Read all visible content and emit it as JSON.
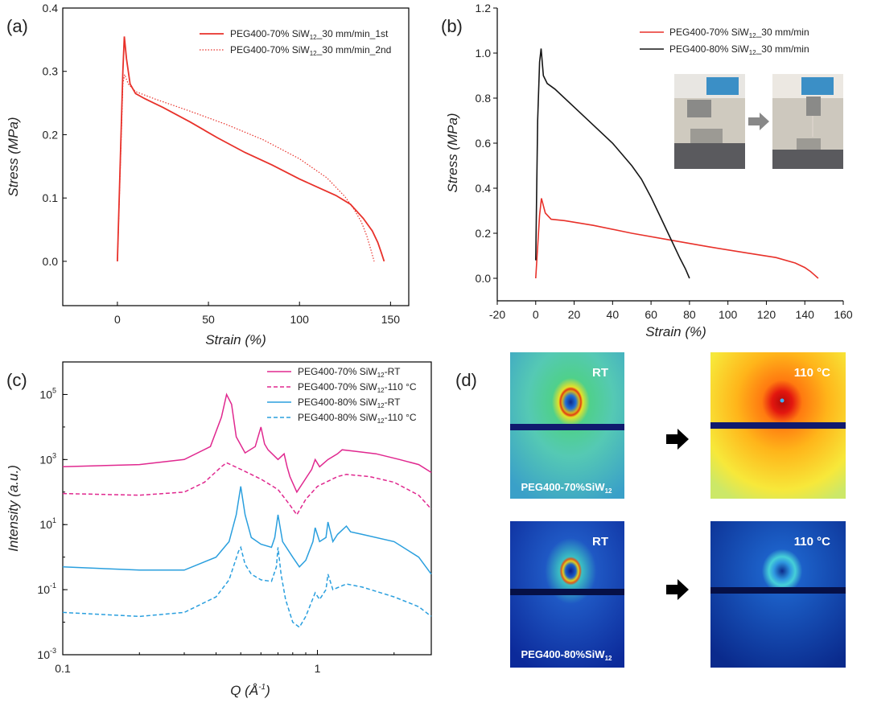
{
  "colors": {
    "red": "#e8312a",
    "dark": "#161616",
    "magenta": "#e0288f",
    "blue": "#2a9fde"
  },
  "chart_data": [
    {
      "panel": "(a)",
      "type": "line",
      "xlabel": "Strain (%)",
      "ylabel": "Stress (MPa)",
      "xlim": [
        -30,
        160
      ],
      "ylim": [
        -0.07,
        0.4
      ],
      "xticks": [
        0,
        50,
        100,
        150
      ],
      "yticks": [
        0.0,
        0.1,
        0.2,
        0.3,
        0.4
      ],
      "series": [
        {
          "name": "PEG400-70% SiW12_30 mm/min_1st",
          "style": "solid",
          "color": "#e8312a",
          "x": [
            0,
            3,
            3.8,
            5,
            7,
            10,
            15,
            25,
            40,
            55,
            70,
            85,
            100,
            110,
            120,
            128,
            135,
            140,
            143,
            145,
            146.5
          ],
          "y": [
            0,
            0.3,
            0.355,
            0.32,
            0.28,
            0.265,
            0.257,
            0.243,
            0.22,
            0.195,
            0.172,
            0.152,
            0.13,
            0.117,
            0.104,
            0.09,
            0.068,
            0.048,
            0.03,
            0.013,
            0
          ]
        },
        {
          "name": "PEG400-70% SiW12_30 mm/min_2nd",
          "style": "dotted",
          "color": "#e8312a",
          "x": [
            0,
            3,
            4,
            6,
            10,
            20,
            40,
            60,
            80,
            100,
            115,
            125,
            130,
            134,
            137,
            139,
            141
          ],
          "y": [
            0,
            0.28,
            0.295,
            0.28,
            0.268,
            0.257,
            0.237,
            0.216,
            0.192,
            0.162,
            0.132,
            0.102,
            0.082,
            0.062,
            0.04,
            0.02,
            0
          ]
        }
      ]
    },
    {
      "panel": "(b)",
      "type": "line",
      "xlabel": "Strain (%)",
      "ylabel": "Stress (MPa)",
      "xlim": [
        -20,
        160
      ],
      "ylim": [
        -0.1,
        1.2
      ],
      "xticks": [
        -20,
        0,
        20,
        40,
        60,
        80,
        100,
        120,
        140,
        160
      ],
      "yticks": [
        0.0,
        0.2,
        0.4,
        0.6,
        0.8,
        1.0,
        1.2
      ],
      "series": [
        {
          "name": "PEG400-70% SiW12_30 mm/min",
          "color": "#e8312a",
          "x": [
            0,
            2,
            3,
            5,
            8,
            15,
            30,
            50,
            70,
            90,
            110,
            125,
            135,
            140,
            143,
            145,
            147
          ],
          "y": [
            0,
            0.28,
            0.355,
            0.29,
            0.262,
            0.256,
            0.235,
            0.2,
            0.17,
            0.14,
            0.112,
            0.092,
            0.068,
            0.048,
            0.03,
            0.015,
            0
          ]
        },
        {
          "name": "PEG400-80% SiW12_30 mm/min",
          "color": "#161616",
          "x": [
            0,
            1,
            2,
            2.8,
            4,
            6,
            10,
            20,
            30,
            40,
            50,
            55,
            60,
            65,
            70,
            75,
            78,
            80
          ],
          "y": [
            0.08,
            0.7,
            0.96,
            1.02,
            0.9,
            0.865,
            0.84,
            0.76,
            0.68,
            0.6,
            0.5,
            0.44,
            0.36,
            0.27,
            0.18,
            0.09,
            0.04,
            0
          ]
        }
      ]
    },
    {
      "panel": "(c)",
      "type": "line",
      "xscale": "log",
      "yscale": "log",
      "xlabel": "Q (Å-1)",
      "ylabel": "Intensity (a.u.)",
      "xlim": [
        0.1,
        2.8
      ],
      "ylim": [
        0.001,
        1000000
      ],
      "xticks": [
        {
          "v": 0.1,
          "label": "0.1"
        },
        {
          "v": 1,
          "label": "1"
        }
      ],
      "yticks": [
        {
          "v": 0.001,
          "e": "-3"
        },
        {
          "v": 0.1,
          "e": "-1"
        },
        {
          "v": 10,
          "e": "1"
        },
        {
          "v": 1000,
          "e": "3"
        },
        {
          "v": 100000,
          "e": "5"
        }
      ],
      "series": [
        {
          "name": "PEG400-70% SiW12-RT",
          "style": "solid",
          "color": "#e0288f",
          "q": [
            0.1,
            0.2,
            0.3,
            0.38,
            0.42,
            0.44,
            0.46,
            0.48,
            0.52,
            0.57,
            0.6,
            0.62,
            0.64,
            0.7,
            0.74,
            0.76,
            0.78,
            0.83,
            0.88,
            0.95,
            0.98,
            1.02,
            1.1,
            1.2,
            1.25,
            1.4,
            1.7,
            2.1,
            2.5,
            2.8
          ],
          "y": [
            600,
            700,
            1000,
            2500,
            20000,
            100000,
            50000,
            5000,
            1600,
            2500,
            10000,
            3000,
            2000,
            1000,
            1500,
            600,
            300,
            100,
            200,
            500,
            1000,
            600,
            1000,
            1500,
            2000,
            1800,
            1500,
            1000,
            700,
            400
          ]
        },
        {
          "name": "PEG400-70% SiW12-110 °C",
          "style": "dashed",
          "color": "#e0288f",
          "q": [
            0.1,
            0.2,
            0.3,
            0.36,
            0.42,
            0.44,
            0.5,
            0.6,
            0.7,
            0.78,
            0.83,
            0.9,
            1.0,
            1.2,
            1.3,
            1.6,
            2.0,
            2.5,
            2.8
          ],
          "y": [
            90,
            80,
            100,
            200,
            600,
            800,
            500,
            250,
            120,
            40,
            20,
            60,
            150,
            300,
            350,
            300,
            200,
            80,
            30
          ]
        },
        {
          "name": "PEG400-80% SiW12-RT",
          "style": "solid",
          "color": "#2a9fde",
          "q": [
            0.1,
            0.2,
            0.3,
            0.4,
            0.45,
            0.48,
            0.5,
            0.52,
            0.55,
            0.6,
            0.66,
            0.68,
            0.7,
            0.73,
            0.8,
            0.85,
            0.9,
            0.96,
            0.98,
            1.02,
            1.08,
            1.1,
            1.15,
            1.2,
            1.3,
            1.35,
            1.5,
            2.0,
            2.5,
            2.8
          ],
          "y": [
            0.5,
            0.4,
            0.4,
            1,
            3,
            20,
            150,
            20,
            4,
            2.5,
            2,
            4,
            20,
            3,
            1,
            0.5,
            0.8,
            3,
            8,
            3,
            4,
            12,
            3,
            5,
            9,
            6,
            5,
            3,
            1,
            0.3
          ]
        },
        {
          "name": "PEG400-80% SiW12-110 °C",
          "style": "dashed",
          "color": "#2a9fde",
          "q": [
            0.1,
            0.2,
            0.3,
            0.4,
            0.45,
            0.49,
            0.5,
            0.52,
            0.55,
            0.6,
            0.66,
            0.69,
            0.7,
            0.72,
            0.75,
            0.8,
            0.85,
            0.9,
            0.98,
            1.02,
            1.08,
            1.1,
            1.15,
            1.3,
            1.5,
            2.0,
            2.5,
            2.8
          ],
          "y": [
            0.02,
            0.015,
            0.02,
            0.06,
            0.2,
            1.5,
            2,
            0.6,
            0.3,
            0.2,
            0.18,
            0.5,
            2,
            0.3,
            0.05,
            0.01,
            0.007,
            0.015,
            0.08,
            0.05,
            0.1,
            0.3,
            0.1,
            0.15,
            0.12,
            0.06,
            0.03,
            0.015
          ]
        }
      ]
    }
  ],
  "panel_d": {
    "label": "(d)",
    "images": [
      {
        "condition": "RT",
        "sample": "PEG400-70%SiW",
        "sub": "12"
      },
      {
        "condition": "110 °C"
      },
      {
        "condition": "RT",
        "sample": "PEG400-80%SiW",
        "sub": "12"
      },
      {
        "condition": "110 °C"
      }
    ]
  }
}
